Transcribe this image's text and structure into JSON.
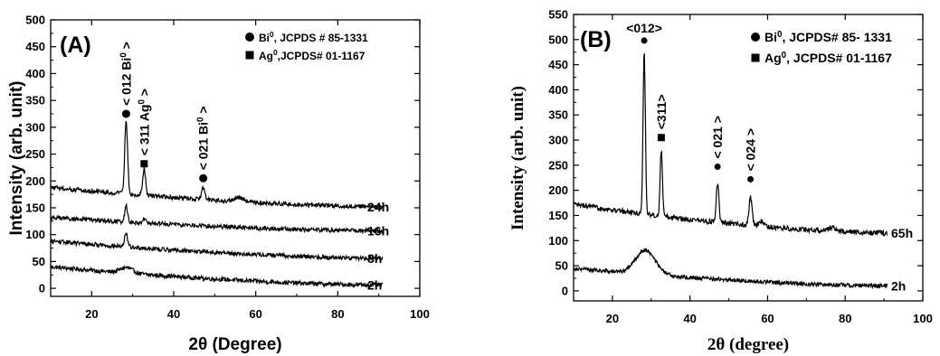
{
  "chart_data": [
    {
      "type": "line",
      "panel_label": "(A)",
      "xlabel": "2θ (Degree)",
      "ylabel": "Intensity (arb. unit)",
      "xlim": [
        10,
        100
      ],
      "ylim": [
        -15,
        500
      ],
      "xticks": [
        20,
        40,
        60,
        80,
        100
      ],
      "yticks": [
        0,
        50,
        100,
        150,
        200,
        250,
        300,
        350,
        400,
        450,
        500
      ],
      "legend": {
        "position": "top-right",
        "items": [
          {
            "marker": "circle",
            "sup": "0",
            "pre": "Bi",
            "post": ", JCPDS # 85-1331"
          },
          {
            "marker": "square",
            "sup": "0",
            "pre": "Ag",
            "post": ",JCPDS# 01-1167"
          }
        ]
      },
      "series": [
        {
          "name": "2h",
          "baseline": [
            40,
            6
          ],
          "peaks": [
            [
              28.5,
              10,
              1.5
            ]
          ],
          "noise": 4
        },
        {
          "name": "8h",
          "baseline": [
            88,
            56
          ],
          "peaks": [
            [
              28.4,
              25,
              0.35
            ]
          ],
          "noise": 4
        },
        {
          "name": "16h",
          "baseline": [
            132,
            107
          ],
          "peaks": [
            [
              28.4,
              30,
              0.35
            ],
            [
              32.8,
              8,
              0.35
            ]
          ],
          "noise": 4
        },
        {
          "name": "24h",
          "baseline": [
            188,
            152
          ],
          "peaks": [
            [
              28.4,
              135,
              0.35
            ],
            [
              32.8,
              50,
              0.35
            ],
            [
              47.2,
              22,
              0.4
            ],
            [
              56,
              8,
              1.2
            ]
          ],
          "noise": 4
        }
      ],
      "peak_annotations": [
        {
          "x": 28.4,
          "y": 325,
          "marker": "circle",
          "pre": "< 012 Bi",
          "sup": "0",
          "post": " >"
        },
        {
          "x": 32.8,
          "y": 232,
          "marker": "square",
          "pre": "< 311 Ag",
          "sup": "0",
          "post": " >"
        },
        {
          "x": 47.2,
          "y": 205,
          "marker": "circle",
          "pre": "< 021 Bi",
          "sup": "0",
          "post": " >"
        }
      ]
    },
    {
      "type": "line",
      "panel_label": "(B)",
      "xlabel": "2θ (degree)",
      "ylabel": "Intensity (arb. unit)",
      "xlim": [
        10,
        100
      ],
      "ylim": [
        -20,
        550
      ],
      "xticks": [
        20,
        40,
        60,
        80,
        100
      ],
      "yticks": [
        0,
        50,
        100,
        150,
        200,
        250,
        300,
        350,
        400,
        450,
        500,
        550
      ],
      "legend": {
        "position": "top-right",
        "items": [
          {
            "marker": "circle",
            "sup": "0",
            "pre": "Bi",
            "post": ", JCPDS# 85- 1331"
          },
          {
            "marker": "square",
            "sup": "0",
            "pre": "Ag",
            "post": ", JCPDS# 01-1167"
          }
        ]
      },
      "series": [
        {
          "name": "2h",
          "baseline": [
            45,
            10
          ],
          "peaks": [
            [
              28.5,
              48,
              2.5
            ]
          ],
          "noise": 4
        },
        {
          "name": "65h",
          "baseline": [
            172,
            115
          ],
          "peaks": [
            [
              28.2,
              320,
              0.3
            ],
            [
              32.6,
              130,
              0.3
            ],
            [
              47.1,
              75,
              0.35
            ],
            [
              55.6,
              55,
              0.4
            ],
            [
              58.4,
              10,
              0.6
            ],
            [
              76.5,
              8,
              1.0
            ]
          ],
          "noise": 5
        }
      ],
      "peak_annotations": [
        {
          "x": 28.2,
          "y": 498,
          "marker": "circle",
          "pre": "<012>",
          "sup": "",
          "post": ""
        },
        {
          "x": 32.6,
          "y": 305,
          "marker": "square",
          "pre": "<311>",
          "sup": "",
          "post": ""
        },
        {
          "x": 47.1,
          "y": 247,
          "marker": "circle",
          "pre": "< 021 >",
          "sup": "",
          "post": ""
        },
        {
          "x": 55.6,
          "y": 222,
          "marker": "circle",
          "pre": "< 024 >",
          "sup": "",
          "post": ""
        }
      ]
    }
  ]
}
